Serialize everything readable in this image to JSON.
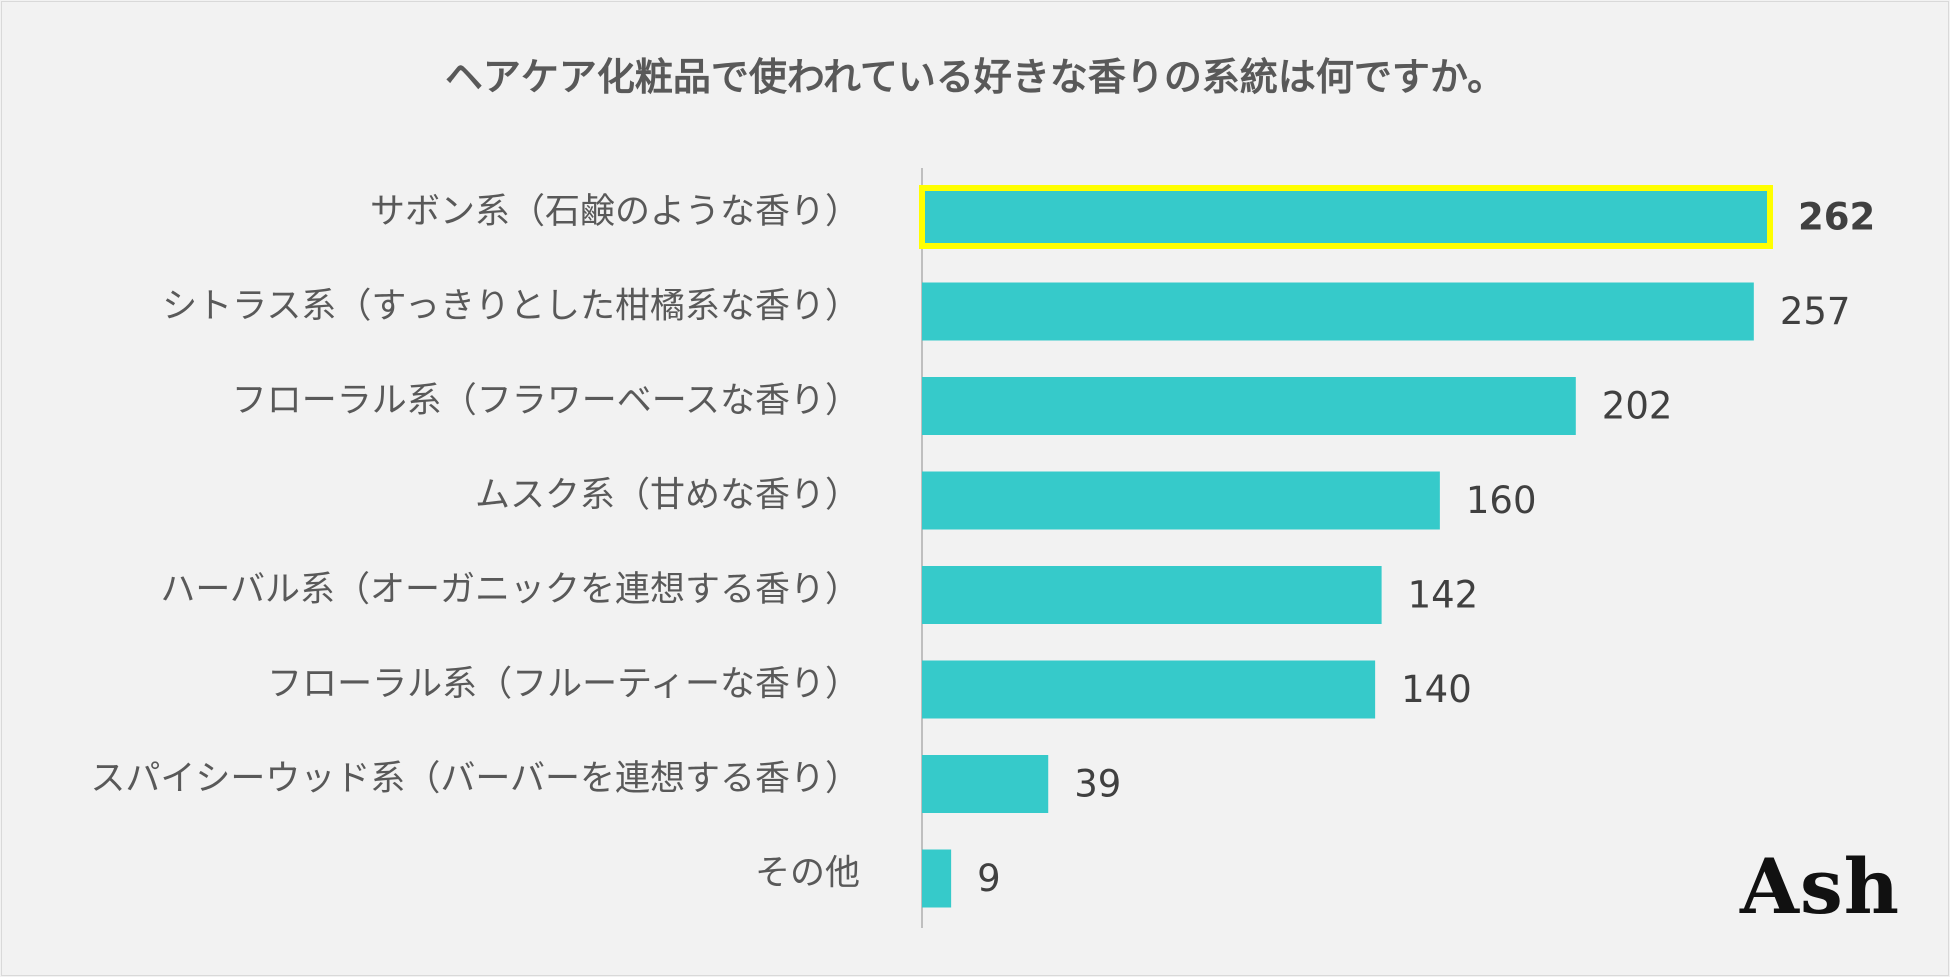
{
  "chart_data": {
    "type": "bar",
    "orientation": "horizontal",
    "title": "ヘアケア化粧品で使われている好きな香りの系統は何ですか。",
    "categories": [
      "サボン系（石鹸のような香り）",
      "シトラス系（すっきりとした柑橘系な香り）",
      "フローラル系（フラワーベースな香り）",
      "ムスク系（甘めな香り）",
      "ハーバル系（オーガニックを連想する香り）",
      "フローラル系（フルーティーな香り）",
      "スパイシーウッド系（バーバーを連想する香り）",
      "その他"
    ],
    "values": [
      262,
      257,
      202,
      160,
      142,
      140,
      39,
      9
    ],
    "highlight_index": 0,
    "xlim": [
      0,
      262
    ],
    "grid": false,
    "legend": "none",
    "xlabel": "",
    "ylabel": ""
  },
  "colors": {
    "bar": "#36caca",
    "highlight_border": "#ffff00",
    "axis": "#bfbfbf"
  },
  "watermark": "Ash"
}
